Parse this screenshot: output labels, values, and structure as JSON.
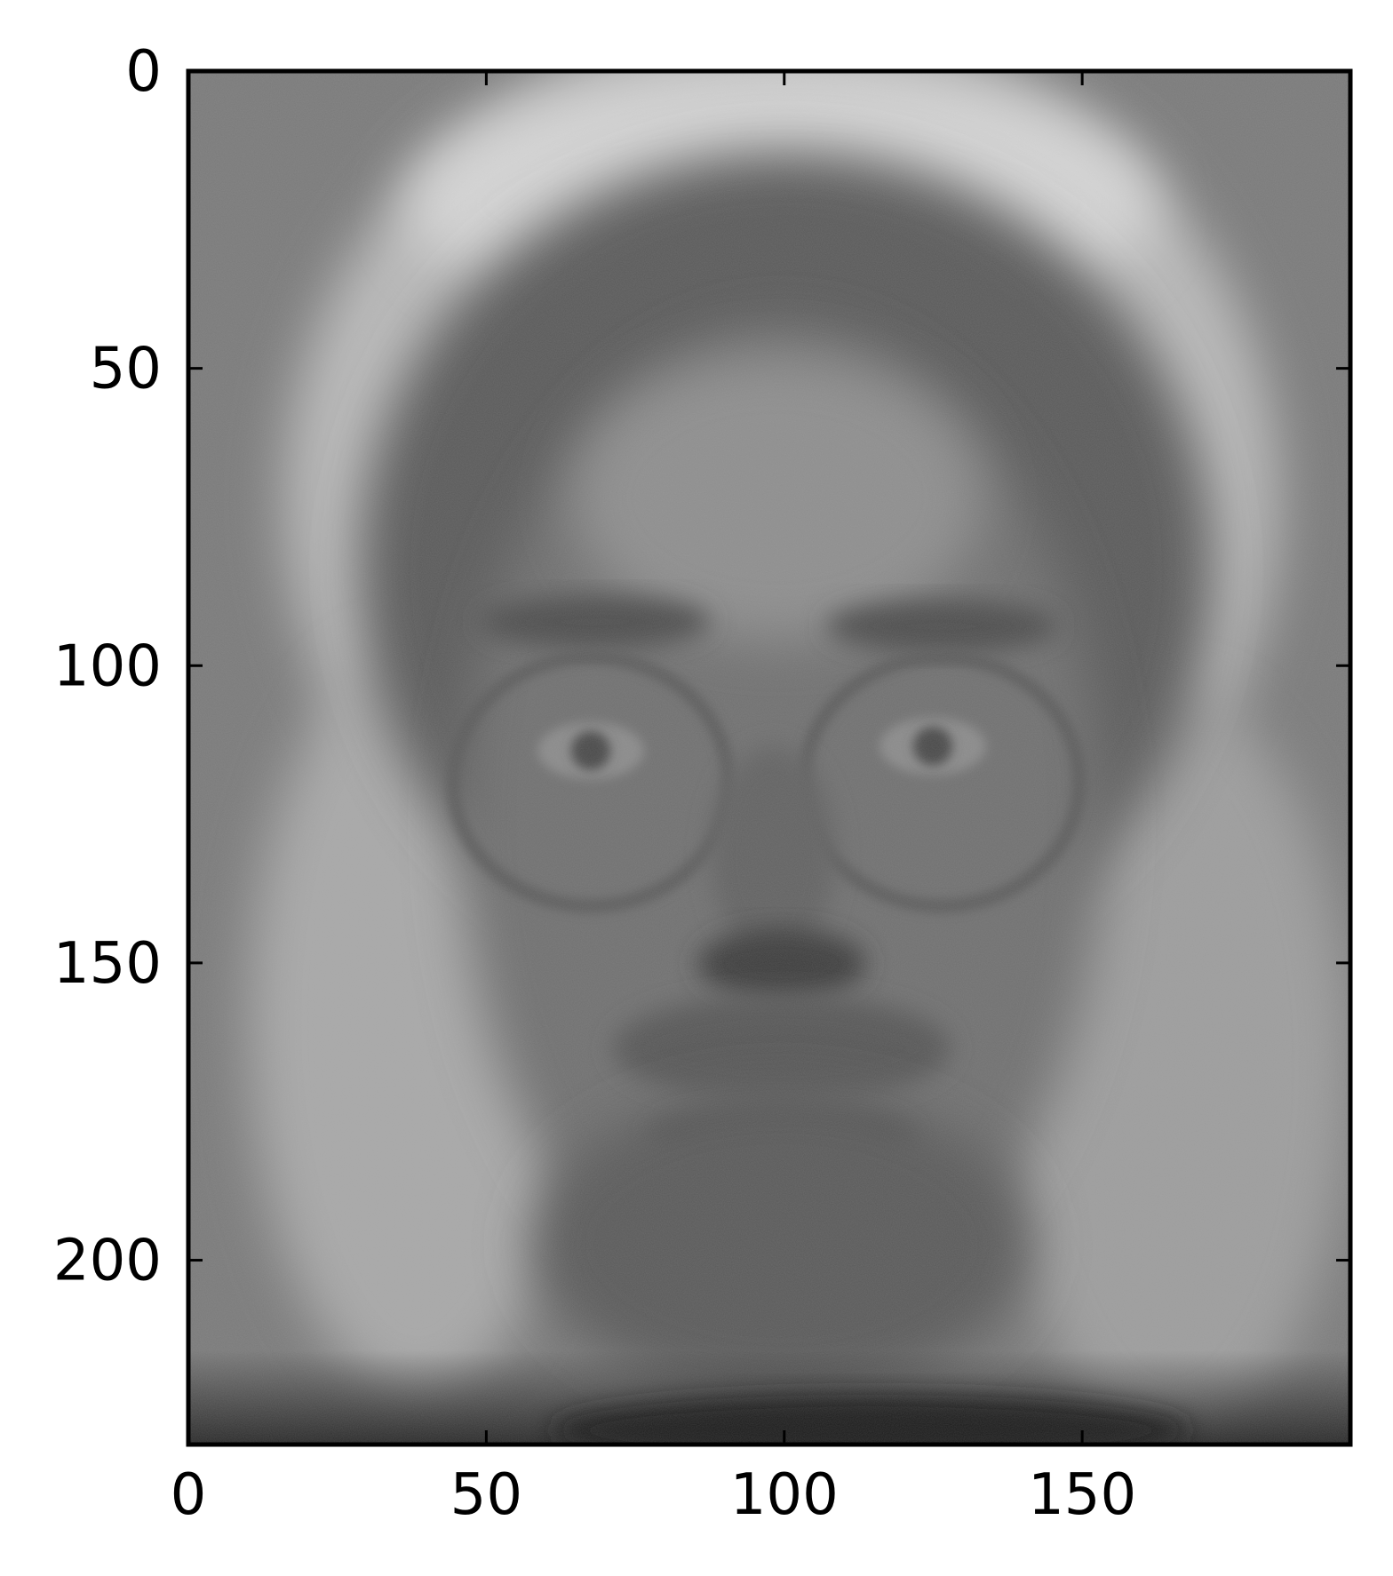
{
  "chart_data": {
    "type": "image",
    "colormap": "gray",
    "x_ticks": [
      0,
      50,
      100,
      150
    ],
    "y_ticks": [
      0,
      50,
      100,
      150,
      200
    ],
    "xlim": [
      0,
      195
    ],
    "ylim": [
      231,
      0
    ],
    "x_tick_labels": [
      "0",
      "50",
      "100",
      "150"
    ],
    "y_tick_labels": [
      "0",
      "50",
      "100",
      "150",
      "200"
    ],
    "image_content": "mean-face"
  }
}
